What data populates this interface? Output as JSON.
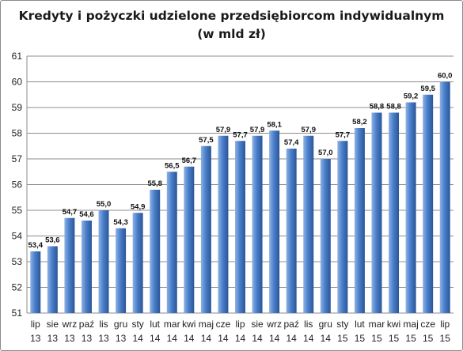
{
  "chart_data": {
    "type": "bar",
    "title": "Kredyty i pożyczki udzielone przedsiębiorcom indywidualnym\n(w mld zł)",
    "categories": [
      [
        "lip",
        "13"
      ],
      [
        "sie",
        "13"
      ],
      [
        "wrz",
        "13"
      ],
      [
        "paź",
        "13"
      ],
      [
        "lis",
        "13"
      ],
      [
        "gru",
        "13"
      ],
      [
        "sty",
        "14"
      ],
      [
        "lut",
        "14"
      ],
      [
        "mar",
        "14"
      ],
      [
        "kwi",
        "14"
      ],
      [
        "maj",
        "14"
      ],
      [
        "cze",
        "14"
      ],
      [
        "lip",
        "14"
      ],
      [
        "sie",
        "14"
      ],
      [
        "wrz",
        "14"
      ],
      [
        "paź",
        "14"
      ],
      [
        "lis",
        "14"
      ],
      [
        "gru",
        "14"
      ],
      [
        "sty",
        "15"
      ],
      [
        "lut",
        "15"
      ],
      [
        "mar",
        "15"
      ],
      [
        "kwi",
        "15"
      ],
      [
        "maj",
        "15"
      ],
      [
        "cze",
        "15"
      ],
      [
        "lip",
        "15"
      ]
    ],
    "values": [
      53.4,
      53.6,
      54.7,
      54.6,
      55.0,
      54.3,
      54.9,
      55.8,
      56.5,
      56.7,
      57.5,
      57.9,
      57.7,
      57.9,
      58.1,
      57.4,
      57.9,
      57.0,
      57.7,
      58.2,
      58.8,
      58.8,
      59.2,
      59.5,
      60.0
    ],
    "data_labels": [
      "53,4",
      "53,6",
      "54,7",
      "54,6",
      "55,0",
      "54,3",
      "54,9",
      "55,8",
      "56,5",
      "56,7",
      "57,5",
      "57,9",
      "57,7",
      "57,9",
      "58,1",
      "57,4",
      "57,9",
      "57,0",
      "57,7",
      "58,2",
      "58,8",
      "58,8",
      "59,2",
      "59,5",
      "60,0"
    ],
    "ylim": [
      51,
      61
    ],
    "yticks": [
      "51",
      "52",
      "53",
      "54",
      "55",
      "56",
      "57",
      "58",
      "59",
      "60",
      "61"
    ],
    "grid": true,
    "legend": "none",
    "colors": {
      "bar_light": "#8fb3e3",
      "bar_mid": "#4a7fcb",
      "bar_dark": "#2b5597",
      "grid": "#8c8c8c"
    }
  }
}
